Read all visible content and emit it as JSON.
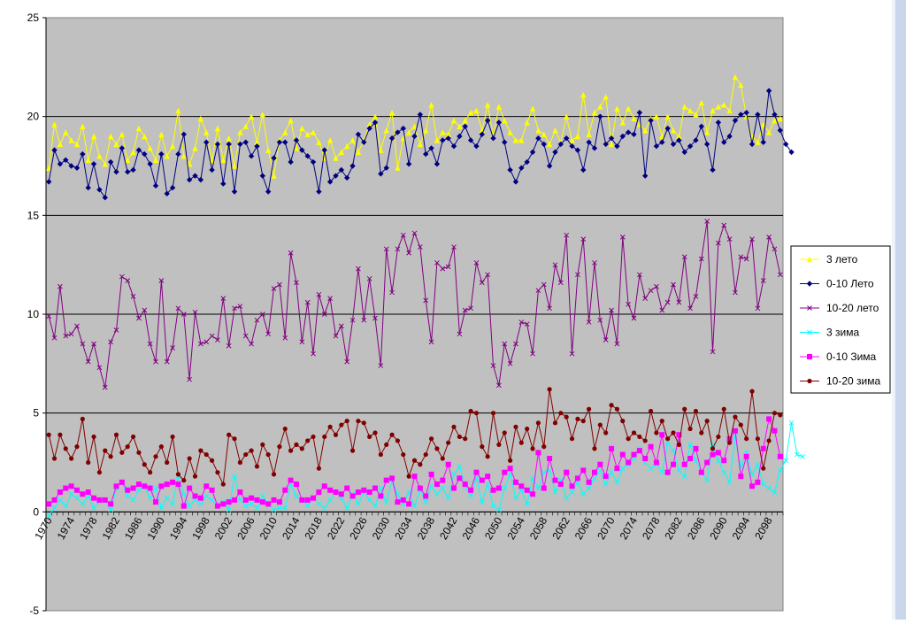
{
  "chart_data": {
    "type": "line",
    "title": "",
    "xlabel": "",
    "ylabel": "",
    "ylim": [
      -5,
      25
    ],
    "yticks": [
      -5,
      0,
      5,
      10,
      15,
      20,
      25
    ],
    "grid": "horizontal major lines",
    "legend_position": "right",
    "x_start": 1970,
    "x_end": 2100,
    "x_tick_labels": [
      "1970",
      "1974",
      "1978",
      "1982",
      "1986",
      "1990",
      "1994",
      "1998",
      "2002",
      "2006",
      "2010",
      "2014",
      "2018",
      "2022",
      "2026",
      "2030",
      "2034",
      "2038",
      "2042",
      "2046",
      "2050",
      "2054",
      "2058",
      "2062",
      "2066",
      "2070",
      "2074",
      "2078",
      "2082",
      "2086",
      "2090",
      "2094",
      "2098"
    ],
    "series": [
      {
        "name": "3 лето",
        "color": "#ffff00",
        "marker": "triangle",
        "values": [
          17.4,
          19.6,
          18.6,
          19.2,
          18.8,
          18.6,
          19.5,
          17.8,
          19.0,
          18.0,
          17.6,
          19.0,
          18.6,
          19.1,
          17.8,
          18.2,
          19.4,
          19.0,
          18.4,
          17.8,
          19.1,
          18.0,
          18.5,
          20.3,
          18.0,
          17.6,
          18.4,
          19.9,
          19.2,
          17.8,
          19.4,
          17.8,
          18.9,
          17.5,
          19.2,
          19.5,
          20.0,
          18.7,
          20.1,
          18.3,
          17.0,
          18.8,
          19.2,
          19.8,
          18.4,
          19.4,
          19.1,
          19.2,
          18.7,
          17.9,
          18.8,
          17.9,
          18.2,
          18.5,
          18.8,
          18.2,
          18.8,
          19.6,
          20.0,
          18.3,
          19.3,
          20.2,
          17.4,
          18.9,
          19.2,
          19.5,
          18.6,
          19.3,
          20.6,
          18.8,
          19.2,
          19.1,
          19.8,
          19.5,
          19.8,
          20.2,
          20.3,
          19.3,
          20.6,
          19.0,
          20.5,
          19.8,
          19.2,
          18.8,
          18.8,
          19.7,
          20.4,
          19.3,
          19.1,
          18.6,
          19.3,
          18.7,
          20.0,
          18.8,
          19.0,
          21.1,
          19.1,
          20.2,
          20.5,
          21.0,
          18.6,
          20.4,
          19.7,
          20.4,
          19.9,
          19.6,
          19.3,
          19.9,
          20.0,
          19.0,
          20.0,
          19.3,
          19.0,
          20.5,
          20.3,
          20.1,
          20.7,
          19.2,
          20.3,
          20.5,
          20.6,
          20.3,
          22.0,
          21.6,
          20.0,
          19.0,
          18.7,
          19.6,
          19.2,
          19.8,
          19.9
        ]
      },
      {
        "name": "0-10 Лето",
        "color": "#000080",
        "marker": "diamond",
        "values": [
          16.7,
          18.3,
          17.6,
          17.8,
          17.5,
          17.4,
          18.1,
          16.4,
          17.6,
          16.3,
          15.9,
          17.7,
          17.2,
          18.4,
          17.2,
          17.3,
          18.3,
          18.1,
          17.6,
          16.5,
          18.1,
          16.1,
          16.4,
          18.1,
          19.1,
          16.8,
          17.0,
          16.8,
          18.7,
          17.3,
          18.6,
          16.6,
          18.6,
          16.2,
          18.6,
          18.7,
          18.0,
          18.5,
          17.0,
          16.2,
          17.9,
          18.7,
          18.7,
          17.7,
          18.8,
          18.3,
          18.0,
          17.7,
          16.2,
          18.3,
          16.7,
          17.0,
          17.3,
          16.9,
          17.5,
          19.1,
          18.7,
          19.4,
          19.7,
          17.1,
          17.4,
          18.9,
          19.2,
          19.4,
          17.6,
          19.0,
          20.1,
          18.1,
          18.4,
          17.6,
          18.8,
          18.9,
          18.5,
          19.0,
          19.5,
          18.8,
          18.5,
          19.1,
          19.8,
          18.9,
          19.7,
          18.7,
          17.3,
          16.7,
          17.4,
          17.7,
          18.2,
          18.9,
          18.6,
          17.5,
          18.2,
          18.6,
          18.9,
          18.5,
          18.3,
          17.3,
          18.7,
          18.4,
          20.0,
          18.6,
          18.9,
          18.5,
          19.0,
          19.2,
          19.1,
          20.2,
          17.0,
          19.8,
          18.5,
          18.7,
          19.4,
          18.6,
          18.8,
          18.2,
          18.5,
          18.8,
          19.5,
          18.6,
          17.3,
          19.7,
          18.7,
          19.0,
          19.8,
          20.1,
          20.2,
          18.6,
          20.1,
          18.7,
          21.3,
          20.1,
          19.3,
          18.6,
          18.2
        ]
      },
      {
        "name": "10-20 лето",
        "color": "#800080",
        "marker": "x",
        "values": [
          9.9,
          8.8,
          11.4,
          8.9,
          9.0,
          9.4,
          8.5,
          7.6,
          8.5,
          7.3,
          6.3,
          8.6,
          9.2,
          11.9,
          11.7,
          10.9,
          9.8,
          10.2,
          8.5,
          7.6,
          11.7,
          7.6,
          8.3,
          10.3,
          10.0,
          6.7,
          10.1,
          8.5,
          8.6,
          8.9,
          8.7,
          10.8,
          8.4,
          10.3,
          10.4,
          8.9,
          8.5,
          9.7,
          10.0,
          9.0,
          11.3,
          11.5,
          8.8,
          13.1,
          11.6,
          8.6,
          10.6,
          8.0,
          11.0,
          10.0,
          10.8,
          8.9,
          9.4,
          7.6,
          9.7,
          12.3,
          9.7,
          11.8,
          9.8,
          7.4,
          13.3,
          11.1,
          13.3,
          14.0,
          13.1,
          14.1,
          13.4,
          10.7,
          8.6,
          12.6,
          12.3,
          12.4,
          13.4,
          9.0,
          10.2,
          10.3,
          12.6,
          11.6,
          12.0,
          7.4,
          6.4,
          8.5,
          7.5,
          8.5,
          9.6,
          9.5,
          8.0,
          11.2,
          11.5,
          10.3,
          12.5,
          11.6,
          14.0,
          8.0,
          12.0,
          13.8,
          9.6,
          12.6,
          9.7,
          8.7,
          10.2,
          8.5,
          13.9,
          10.5,
          9.8,
          12.0,
          10.8,
          11.2,
          11.4,
          10.2,
          10.6,
          11.5,
          10.6,
          12.9,
          10.3,
          10.9,
          12.8,
          14.7,
          8.1,
          13.6,
          14.5,
          13.8,
          11.1,
          12.9,
          12.8,
          13.8,
          10.3,
          11.7,
          13.9,
          13.3,
          12.0
        ]
      },
      {
        "name": "3 зима",
        "color": "#00ffff",
        "marker": "x",
        "values": [
          -0.2,
          0.2,
          0.6,
          0.3,
          0.9,
          0.7,
          0.4,
          0.8,
          0.2,
          0.5,
          0.6,
          0.1,
          1.2,
          1.5,
          0.8,
          0.6,
          1.1,
          1.3,
          0.7,
          1.2,
          0.2,
          0.7,
          0.4,
          1.8,
          0.9,
          0.3,
          0.6,
          0.4,
          0.8,
          0.6,
          0.3,
          0.5,
          0.1,
          1.8,
          0.6,
          0.3,
          0.4,
          0.2,
          0.8,
          0.4,
          0.1,
          0.2,
          0.2,
          1.4,
          0.8,
          0.6,
          0.3,
          0.7,
          0.4,
          0.2,
          0.6,
          1.0,
          0.7,
          0.2,
          0.9,
          0.4,
          1.0,
          0.6,
          0.3,
          1.2,
          0.5,
          1.6,
          0.9,
          0.4,
          1.0,
          0.3,
          1.1,
          0.5,
          1.3,
          0.9,
          1.2,
          0.7,
          1.9,
          2.3,
          1.3,
          0.8,
          1.7,
          0.5,
          1.4,
          0.3,
          0.1,
          1.2,
          1.9,
          0.7,
          1.1,
          0.4,
          1.7,
          1.2,
          2.0,
          2.1,
          1.0,
          1.6,
          0.7,
          1.0,
          1.5,
          0.9,
          1.2,
          1.7,
          2.1,
          1.4,
          2.0,
          1.5,
          2.2,
          2.4,
          2.7,
          3.2,
          2.5,
          2.2,
          2.4,
          2.0,
          3.5,
          3.1,
          2.1,
          1.8,
          3.4,
          2.6,
          2.0,
          1.6,
          3.4,
          2.6,
          2.0,
          1.5,
          3.8,
          2.3,
          3.0,
          1.9,
          2.4,
          1.4,
          1.2,
          1.0,
          2.1,
          2.6,
          4.5,
          2.9,
          2.8
        ]
      },
      {
        "name": "0-10 Зима",
        "color": "#ff00ff",
        "marker": "square",
        "values": [
          0.4,
          0.6,
          1.0,
          1.2,
          1.3,
          1.1,
          0.9,
          1.0,
          0.7,
          0.6,
          0.6,
          0.4,
          1.3,
          1.5,
          1.1,
          1.2,
          1.4,
          1.3,
          1.2,
          0.5,
          1.3,
          1.4,
          1.5,
          1.4,
          0.3,
          1.2,
          0.8,
          0.7,
          1.3,
          1.1,
          0.3,
          0.4,
          0.5,
          0.6,
          1.0,
          0.6,
          0.7,
          0.6,
          0.5,
          0.4,
          0.6,
          0.5,
          1.1,
          1.6,
          1.4,
          0.6,
          0.6,
          0.7,
          1.0,
          1.3,
          1.1,
          1.0,
          0.9,
          1.2,
          0.8,
          1.0,
          1.1,
          1.0,
          1.2,
          0.8,
          1.6,
          1.7,
          0.5,
          0.6,
          0.4,
          1.8,
          1.2,
          0.8,
          1.9,
          1.4,
          1.6,
          2.4,
          1.2,
          1.7,
          1.4,
          1.1,
          2.0,
          1.6,
          1.8,
          1.1,
          1.2,
          2.0,
          2.2,
          1.5,
          1.3,
          1.1,
          0.9,
          3.0,
          1.2,
          2.7,
          1.6,
          1.4,
          2.0,
          1.3,
          1.7,
          2.1,
          1.5,
          2.0,
          2.4,
          1.8,
          3.2,
          2.2,
          2.9,
          2.5,
          2.9,
          3.1,
          2.7,
          3.3,
          2.5,
          3.9,
          2.0,
          2.4,
          3.9,
          2.4,
          2.7,
          3.2,
          2.0,
          2.5,
          2.9,
          3.0,
          2.6,
          3.7,
          4.1,
          1.8,
          2.8,
          1.3,
          1.5,
          3.2,
          4.7,
          4.1,
          2.8
        ]
      },
      {
        "name": "10-20 зима",
        "color": "#800000",
        "marker": "circle",
        "values": [
          3.9,
          2.7,
          3.9,
          3.2,
          2.7,
          3.3,
          4.7,
          2.5,
          3.8,
          2.0,
          3.1,
          2.8,
          3.9,
          3.0,
          3.3,
          3.8,
          3.0,
          2.4,
          2.0,
          2.8,
          3.3,
          2.5,
          3.8,
          1.9,
          1.6,
          2.7,
          1.8,
          3.1,
          2.9,
          2.6,
          2.0,
          1.4,
          3.9,
          3.7,
          2.5,
          2.9,
          3.1,
          2.3,
          3.4,
          2.9,
          1.9,
          3.3,
          4.2,
          3.1,
          3.4,
          3.2,
          3.6,
          3.8,
          2.2,
          3.8,
          4.3,
          3.9,
          4.4,
          4.6,
          3.1,
          4.6,
          4.5,
          3.8,
          4.0,
          2.9,
          3.4,
          3.9,
          3.6,
          2.9,
          1.8,
          2.6,
          2.4,
          2.9,
          3.7,
          3.2,
          2.7,
          3.5,
          4.3,
          3.8,
          3.7,
          5.1,
          5.0,
          3.3,
          2.8,
          5.0,
          3.4,
          4.0,
          2.6,
          4.3,
          3.5,
          4.2,
          3.2,
          4.5,
          3.3,
          6.2,
          4.5,
          5.0,
          4.8,
          3.7,
          4.7,
          4.6,
          5.2,
          3.2,
          4.4,
          4.0,
          5.4,
          5.2,
          4.6,
          3.7,
          4.0,
          3.8,
          3.6,
          5.1,
          4.0,
          4.6,
          3.7,
          4.0,
          3.4,
          5.2,
          4.2,
          5.1,
          4.0,
          4.6,
          3.2,
          3.8,
          5.2,
          3.5,
          4.8,
          4.4,
          3.7,
          6.1,
          3.7,
          2.2,
          3.6,
          5.0,
          4.9
        ]
      }
    ]
  }
}
